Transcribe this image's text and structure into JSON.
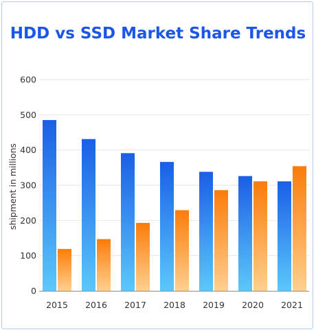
{
  "chart_data": {
    "type": "bar",
    "title": "HDD vs SSD Market Share Trends",
    "xlabel": "",
    "ylabel": "shipment in millions",
    "categories": [
      "2015",
      "2016",
      "2017",
      "2018",
      "2019",
      "2020",
      "2021"
    ],
    "series": [
      {
        "values": [
          485,
          431,
          391,
          366,
          338,
          326,
          311
        ]
      },
      {
        "values": [
          119,
          147,
          193,
          229,
          286,
          311,
          354
        ]
      }
    ],
    "ylim": [
      0,
      600
    ],
    "yticks": [
      0,
      100,
      200,
      300,
      400,
      500,
      600
    ],
    "grid": true,
    "legend": "none",
    "colors": {
      "hdd_top": "#1a5fe6",
      "hdd_bottom": "#5cc8fb",
      "ssd_top": "#fb7c0a",
      "ssd_bottom": "#ffd08f",
      "grid": "#e6e6e6",
      "axis": "#8c8c8c"
    }
  }
}
